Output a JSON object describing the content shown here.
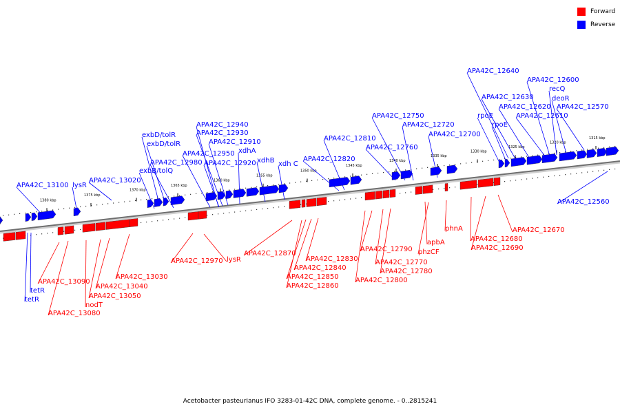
{
  "legend": {
    "forward_label": "Forward",
    "reverse_label": "Reverse",
    "forward_color": "#ff0000",
    "reverse_color": "#0000ff"
  },
  "caption": "Acetobacter pasteurianus IFO 3283-01-42C DNA, complete genome. - 0..2815241",
  "scale_ticks": [
    "1315 kbp",
    "1320 kbp",
    "1325 kbp",
    "1330 kbp",
    "1335 kbp",
    "1340 kbp",
    "1345 kbp",
    "1350 kbp",
    "1355 kbp",
    "1360 kbp",
    "1365 kbp",
    "1370 kbp",
    "1375 kbp",
    "1380 kbp"
  ],
  "reverse_labels": [
    "APA42C_12640",
    "APA42C_12600",
    "recQ",
    "APA42C_12630",
    "deoR",
    "APA42C_12620",
    "APA42C_12570",
    "rpoE",
    "APA42C_12610",
    "rpoE",
    "APA42C_12750",
    "APA42C_12720",
    "APA42C_12700",
    "APA42C_12810",
    "APA42C_12760",
    "APA42C_12820",
    "APA42C_12940",
    "APA42C_12930",
    "exbD/tolR",
    "APA42C_12910",
    "exbD/tolR",
    "xdhA",
    "APA42C_12950",
    "APA42C_12980",
    "APA42C_12920",
    "xdhB",
    "xdh C",
    "exbB/tolQ",
    "APA42C_13020",
    "APA42C_13100",
    "lysR",
    "APA42C_12560",
    "tetR",
    "tetR"
  ],
  "forward_labels": [
    "APA42C_12670",
    "phnA",
    "APA42C_12680",
    "APA42C_12690",
    "apbA",
    "phzCF",
    "APA42C_12790",
    "APA42C_12770",
    "APA42C_12780",
    "APA42C_12800",
    "APA42C_12870",
    "APA42C_12830",
    "APA42C_12840",
    "APA42C_12850",
    "APA42C_12860",
    "APA42C_12970",
    "lysR",
    "APA42C_13030",
    "APA42C_13040",
    "APA42C_13050",
    "nodT",
    "APA42C_13080",
    "APA42C_13090"
  ]
}
